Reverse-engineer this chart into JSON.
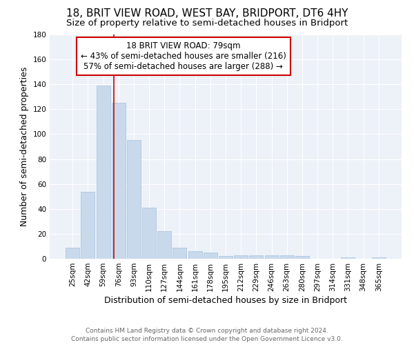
{
  "title": "18, BRIT VIEW ROAD, WEST BAY, BRIDPORT, DT6 4HY",
  "subtitle": "Size of property relative to semi-detached houses in Bridport",
  "xlabel": "Distribution of semi-detached houses by size in Bridport",
  "ylabel": "Number of semi-detached properties",
  "categories": [
    "25sqm",
    "42sqm",
    "59sqm",
    "76sqm",
    "93sqm",
    "110sqm",
    "127sqm",
    "144sqm",
    "161sqm",
    "178sqm",
    "195sqm",
    "212sqm",
    "229sqm",
    "246sqm",
    "263sqm",
    "280sqm",
    "297sqm",
    "314sqm",
    "331sqm",
    "348sqm",
    "365sqm"
  ],
  "values": [
    9,
    54,
    139,
    125,
    95,
    41,
    22,
    9,
    6,
    5,
    2,
    3,
    3,
    3,
    3,
    2,
    0,
    0,
    1,
    0,
    1
  ],
  "bar_color": "#c8d9ec",
  "bar_edge_color": "#b0c8e0",
  "property_bin_index": 3,
  "property_label": "18 BRIT VIEW ROAD: 79sqm",
  "annotation_line1": "← 43% of semi-detached houses are smaller (216)",
  "annotation_line2": "57% of semi-detached houses are larger (288) →",
  "annotation_box_facecolor": "#ffffff",
  "annotation_box_edgecolor": "#cc0000",
  "vline_color": "#cc0000",
  "footer_line1": "Contains HM Land Registry data © Crown copyright and database right 2024.",
  "footer_line2": "Contains public sector information licensed under the Open Government Licence v3.0.",
  "ylim": [
    0,
    180
  ],
  "background_color": "#edf1f8",
  "title_fontsize": 11,
  "subtitle_fontsize": 9.5,
  "axis_label_fontsize": 9,
  "tick_fontsize": 7.5,
  "footer_fontsize": 6.5,
  "annotation_fontsize": 8.5
}
